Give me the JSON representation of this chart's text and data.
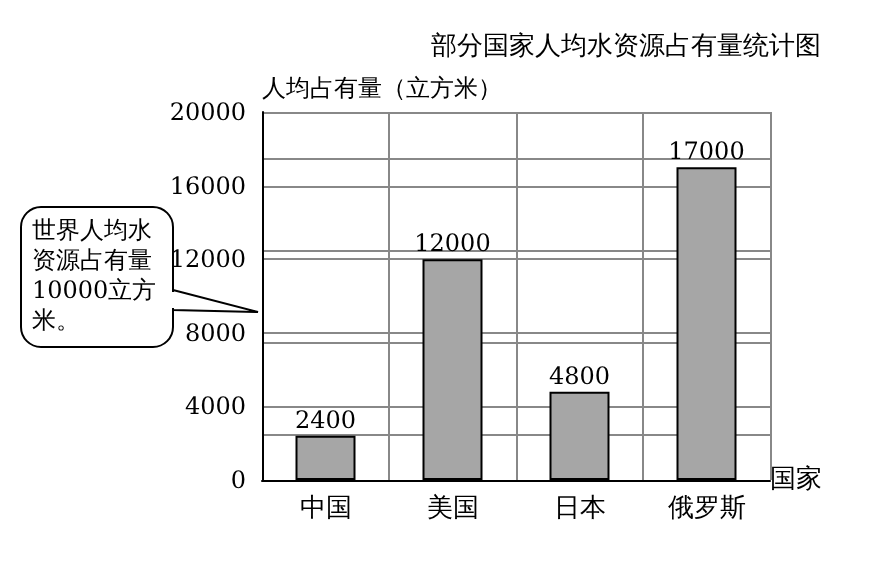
{
  "chart_data": {
    "type": "bar",
    "title": "部分国家人均水资源占有量统计图",
    "ylabel": "人均占有量（立方米）",
    "xlabel": "国家",
    "categories": [
      "中国",
      "美国",
      "日本",
      "俄罗斯"
    ],
    "values": [
      2400,
      12000,
      4800,
      17000
    ],
    "color": "#a6a6a6",
    "ylim": [
      0,
      20000
    ],
    "yticks": [
      0,
      4000,
      8000,
      12000,
      16000,
      20000
    ],
    "grid": true,
    "data_labels": true,
    "annotations": [
      "世界人均水资源占有量10000立方米。"
    ]
  }
}
